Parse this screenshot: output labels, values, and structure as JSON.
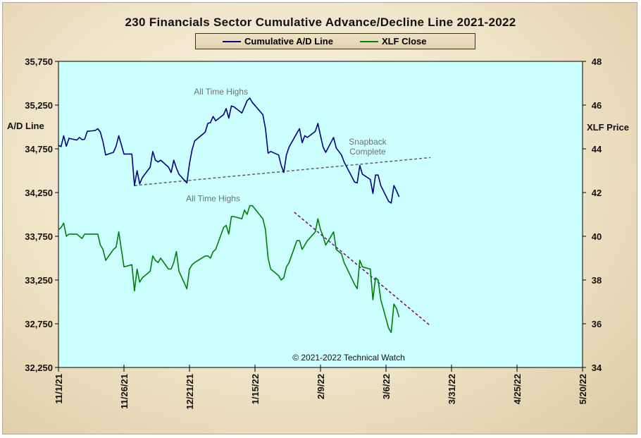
{
  "chart_data": {
    "type": "line",
    "title": "230 Financials  Sector Cumulative  Advance/Decline  Line 2021-2022",
    "y_left_label": "A/D Line",
    "y_right_label": "XLF Price",
    "y_left_range": [
      32250,
      35750
    ],
    "y_left_ticks": [
      "35,750",
      "35,250",
      "34,750",
      "34,250",
      "33,750",
      "33,250",
      "32,750",
      "32,250"
    ],
    "y_right_range": [
      34,
      48
    ],
    "y_right_ticks": [
      "48",
      "46",
      "44",
      "42",
      "40",
      "38",
      "36",
      "34"
    ],
    "x_range": [
      "2021-11-01",
      "2022-05-20"
    ],
    "x_ticks": [
      "11/1/21",
      "11/26/21",
      "12/21/21",
      "1/15/22",
      "2/9/22",
      "3/6/22",
      "3/31/22",
      "4/25/22",
      "5/20/22"
    ],
    "grid": false,
    "legend_position": "top-center",
    "series": [
      {
        "name": "Cumulative A/D Line",
        "axis": "left",
        "color": "#000080",
        "points": [
          [
            "2021-11-01",
            34790
          ],
          [
            "2021-11-02",
            34775
          ],
          [
            "2021-11-03",
            34900
          ],
          [
            "2021-11-04",
            34780
          ],
          [
            "2021-11-05",
            34870
          ],
          [
            "2021-11-08",
            34850
          ],
          [
            "2021-11-09",
            34880
          ],
          [
            "2021-11-10",
            34855
          ],
          [
            "2021-11-11",
            34860
          ],
          [
            "2021-11-12",
            34950
          ],
          [
            "2021-11-15",
            34960
          ],
          [
            "2021-11-16",
            34980
          ],
          [
            "2021-11-17",
            34940
          ],
          [
            "2021-11-18",
            34830
          ],
          [
            "2021-11-19",
            34680
          ],
          [
            "2021-11-22",
            34710
          ],
          [
            "2021-11-23",
            34780
          ],
          [
            "2021-11-24",
            34900
          ],
          [
            "2021-11-26",
            34690
          ],
          [
            "2021-11-29",
            34690
          ],
          [
            "2021-11-30",
            34330
          ],
          [
            "2021-12-01",
            34500
          ],
          [
            "2021-12-02",
            34350
          ],
          [
            "2021-12-03",
            34420
          ],
          [
            "2021-12-06",
            34540
          ],
          [
            "2021-12-07",
            34720
          ],
          [
            "2021-12-08",
            34620
          ],
          [
            "2021-12-09",
            34600
          ],
          [
            "2021-12-10",
            34620
          ],
          [
            "2021-12-13",
            34540
          ],
          [
            "2021-12-14",
            34480
          ],
          [
            "2021-12-15",
            34620
          ],
          [
            "2021-12-16",
            34530
          ],
          [
            "2021-12-17",
            34460
          ],
          [
            "2021-12-20",
            34360
          ],
          [
            "2021-12-21",
            34580
          ],
          [
            "2021-12-22",
            34740
          ],
          [
            "2021-12-23",
            34840
          ],
          [
            "2021-12-27",
            34940
          ],
          [
            "2021-12-28",
            35040
          ],
          [
            "2021-12-29",
            35050
          ],
          [
            "2021-12-30",
            35120
          ],
          [
            "2021-12-31",
            35070
          ],
          [
            "2022-01-03",
            35140
          ],
          [
            "2022-01-04",
            35210
          ],
          [
            "2022-01-05",
            35100
          ],
          [
            "2022-01-06",
            35240
          ],
          [
            "2022-01-07",
            35230
          ],
          [
            "2022-01-10",
            35160
          ],
          [
            "2022-01-11",
            35230
          ],
          [
            "2022-01-12",
            35300
          ],
          [
            "2022-01-13",
            35330
          ],
          [
            "2022-01-14",
            35280
          ],
          [
            "2022-01-18",
            35140
          ],
          [
            "2022-01-19",
            34980
          ],
          [
            "2022-01-20",
            34700
          ],
          [
            "2022-01-21",
            34720
          ],
          [
            "2022-01-24",
            34680
          ],
          [
            "2022-01-25",
            34560
          ],
          [
            "2022-01-26",
            34480
          ],
          [
            "2022-01-27",
            34680
          ],
          [
            "2022-01-28",
            34770
          ],
          [
            "2022-01-31",
            34930
          ],
          [
            "2022-02-01",
            34980
          ],
          [
            "2022-02-02",
            34820
          ],
          [
            "2022-02-03",
            34900
          ],
          [
            "2022-02-04",
            34880
          ],
          [
            "2022-02-07",
            34950
          ],
          [
            "2022-02-08",
            35040
          ],
          [
            "2022-02-09",
            34900
          ],
          [
            "2022-02-10",
            34770
          ],
          [
            "2022-02-11",
            34710
          ],
          [
            "2022-02-14",
            34880
          ],
          [
            "2022-02-15",
            34760
          ],
          [
            "2022-02-16",
            34720
          ],
          [
            "2022-02-17",
            34680
          ],
          [
            "2022-02-18",
            34600
          ],
          [
            "2022-02-22",
            34370
          ],
          [
            "2022-02-23",
            34360
          ],
          [
            "2022-02-24",
            34560
          ],
          [
            "2022-02-25",
            34460
          ],
          [
            "2022-02-28",
            34400
          ],
          [
            "2022-03-01",
            34240
          ],
          [
            "2022-03-02",
            34450
          ],
          [
            "2022-03-03",
            34450
          ],
          [
            "2022-03-04",
            34330
          ],
          [
            "2022-03-07",
            34150
          ],
          [
            "2022-03-08",
            34130
          ],
          [
            "2022-03-09",
            34330
          ],
          [
            "2022-03-10",
            34270
          ],
          [
            "2022-03-11",
            34200
          ]
        ]
      },
      {
        "name": "XLF Close",
        "axis": "right",
        "color": "#008000",
        "points": [
          [
            "2021-11-01",
            40.3
          ],
          [
            "2021-11-02",
            40.4
          ],
          [
            "2021-11-03",
            40.6
          ],
          [
            "2021-11-04",
            40.0
          ],
          [
            "2021-11-05",
            40.1
          ],
          [
            "2021-11-08",
            40.1
          ],
          [
            "2021-11-09",
            40.0
          ],
          [
            "2021-11-10",
            39.9
          ],
          [
            "2021-11-11",
            40.1
          ],
          [
            "2021-11-12",
            40.1
          ],
          [
            "2021-11-15",
            40.1
          ],
          [
            "2021-11-16",
            40.1
          ],
          [
            "2021-11-17",
            39.6
          ],
          [
            "2021-11-18",
            39.4
          ],
          [
            "2021-11-19",
            38.9
          ],
          [
            "2021-11-22",
            39.4
          ],
          [
            "2021-11-23",
            39.5
          ],
          [
            "2021-11-24",
            40.2
          ],
          [
            "2021-11-26",
            38.6
          ],
          [
            "2021-11-29",
            38.7
          ],
          [
            "2021-11-30",
            37.5
          ],
          [
            "2021-12-01",
            38.5
          ],
          [
            "2021-12-02",
            37.9
          ],
          [
            "2021-12-03",
            38.1
          ],
          [
            "2021-12-06",
            38.4
          ],
          [
            "2021-12-07",
            39.1
          ],
          [
            "2021-12-08",
            38.9
          ],
          [
            "2021-12-09",
            38.8
          ],
          [
            "2021-12-10",
            39.0
          ],
          [
            "2021-12-13",
            38.5
          ],
          [
            "2021-12-14",
            38.5
          ],
          [
            "2021-12-15",
            38.8
          ],
          [
            "2021-12-16",
            39.3
          ],
          [
            "2021-12-17",
            38.4
          ],
          [
            "2021-12-20",
            37.6
          ],
          [
            "2021-12-21",
            38.5
          ],
          [
            "2021-12-22",
            38.7
          ],
          [
            "2021-12-23",
            38.8
          ],
          [
            "2021-12-27",
            39.1
          ],
          [
            "2021-12-28",
            39.1
          ],
          [
            "2021-12-29",
            39.0
          ],
          [
            "2021-12-30",
            39.3
          ],
          [
            "2021-12-31",
            39.4
          ],
          [
            "2022-01-03",
            40.4
          ],
          [
            "2022-01-04",
            40.5
          ],
          [
            "2022-01-05",
            40.1
          ],
          [
            "2022-01-06",
            40.9
          ],
          [
            "2022-01-07",
            40.9
          ],
          [
            "2022-01-10",
            40.8
          ],
          [
            "2022-01-11",
            41.2
          ],
          [
            "2022-01-12",
            41.0
          ],
          [
            "2022-01-13",
            41.4
          ],
          [
            "2022-01-14",
            41.4
          ],
          [
            "2022-01-18",
            40.8
          ],
          [
            "2022-01-19",
            40.3
          ],
          [
            "2022-01-20",
            39.0
          ],
          [
            "2022-01-21",
            38.5
          ],
          [
            "2022-01-24",
            38.2
          ],
          [
            "2022-01-25",
            38.0
          ],
          [
            "2022-01-26",
            38.1
          ],
          [
            "2022-01-27",
            38.6
          ],
          [
            "2022-01-28",
            38.8
          ],
          [
            "2022-01-31",
            39.8
          ],
          [
            "2022-02-01",
            39.8
          ],
          [
            "2022-02-02",
            39.4
          ],
          [
            "2022-02-03",
            39.6
          ],
          [
            "2022-02-04",
            39.8
          ],
          [
            "2022-02-07",
            40.2
          ],
          [
            "2022-02-08",
            40.8
          ],
          [
            "2022-02-09",
            40.3
          ],
          [
            "2022-02-10",
            40.0
          ],
          [
            "2022-02-11",
            39.6
          ],
          [
            "2022-02-14",
            40.2
          ],
          [
            "2022-02-15",
            39.4
          ],
          [
            "2022-02-16",
            39.3
          ],
          [
            "2022-02-17",
            39.2
          ],
          [
            "2022-02-18",
            38.8
          ],
          [
            "2022-02-22",
            37.8
          ],
          [
            "2022-02-23",
            37.6
          ],
          [
            "2022-02-24",
            38.9
          ],
          [
            "2022-02-25",
            38.6
          ],
          [
            "2022-02-28",
            38.5
          ],
          [
            "2022-03-01",
            37.1
          ],
          [
            "2022-03-02",
            38.1
          ],
          [
            "2022-03-03",
            38.0
          ],
          [
            "2022-03-04",
            37.1
          ],
          [
            "2022-03-07",
            35.8
          ],
          [
            "2022-03-08",
            35.6
          ],
          [
            "2022-03-09",
            36.9
          ],
          [
            "2022-03-10",
            36.7
          ],
          [
            "2022-03-11",
            36.3
          ]
        ]
      }
    ],
    "trendlines": [
      {
        "axis": "left",
        "start": [
          "2021-11-30",
          34330
        ],
        "end": [
          "2022-03-23",
          34650
        ],
        "color": "#606060",
        "style": "dashed"
      },
      {
        "axis": "right",
        "start": [
          "2022-01-30",
          41.1
        ],
        "end": [
          "2022-03-23",
          35.9
        ],
        "color": "#800080",
        "style": "dashed"
      }
    ],
    "annotations": [
      {
        "text": "All Time Highs",
        "date": "2022-01-02",
        "axis": "left",
        "value": 35370
      },
      {
        "text": "All Time Highs",
        "date": "2021-12-30",
        "axis": "right",
        "value": 41.6
      },
      {
        "text": "Snapback",
        "date": "2022-02-27",
        "axis": "left",
        "value": 34800
      },
      {
        "text": "Complete",
        "date": "2022-02-27",
        "axis": "left",
        "value": 34685
      }
    ],
    "copyright": "© 2021-2022  Technical Watch"
  }
}
